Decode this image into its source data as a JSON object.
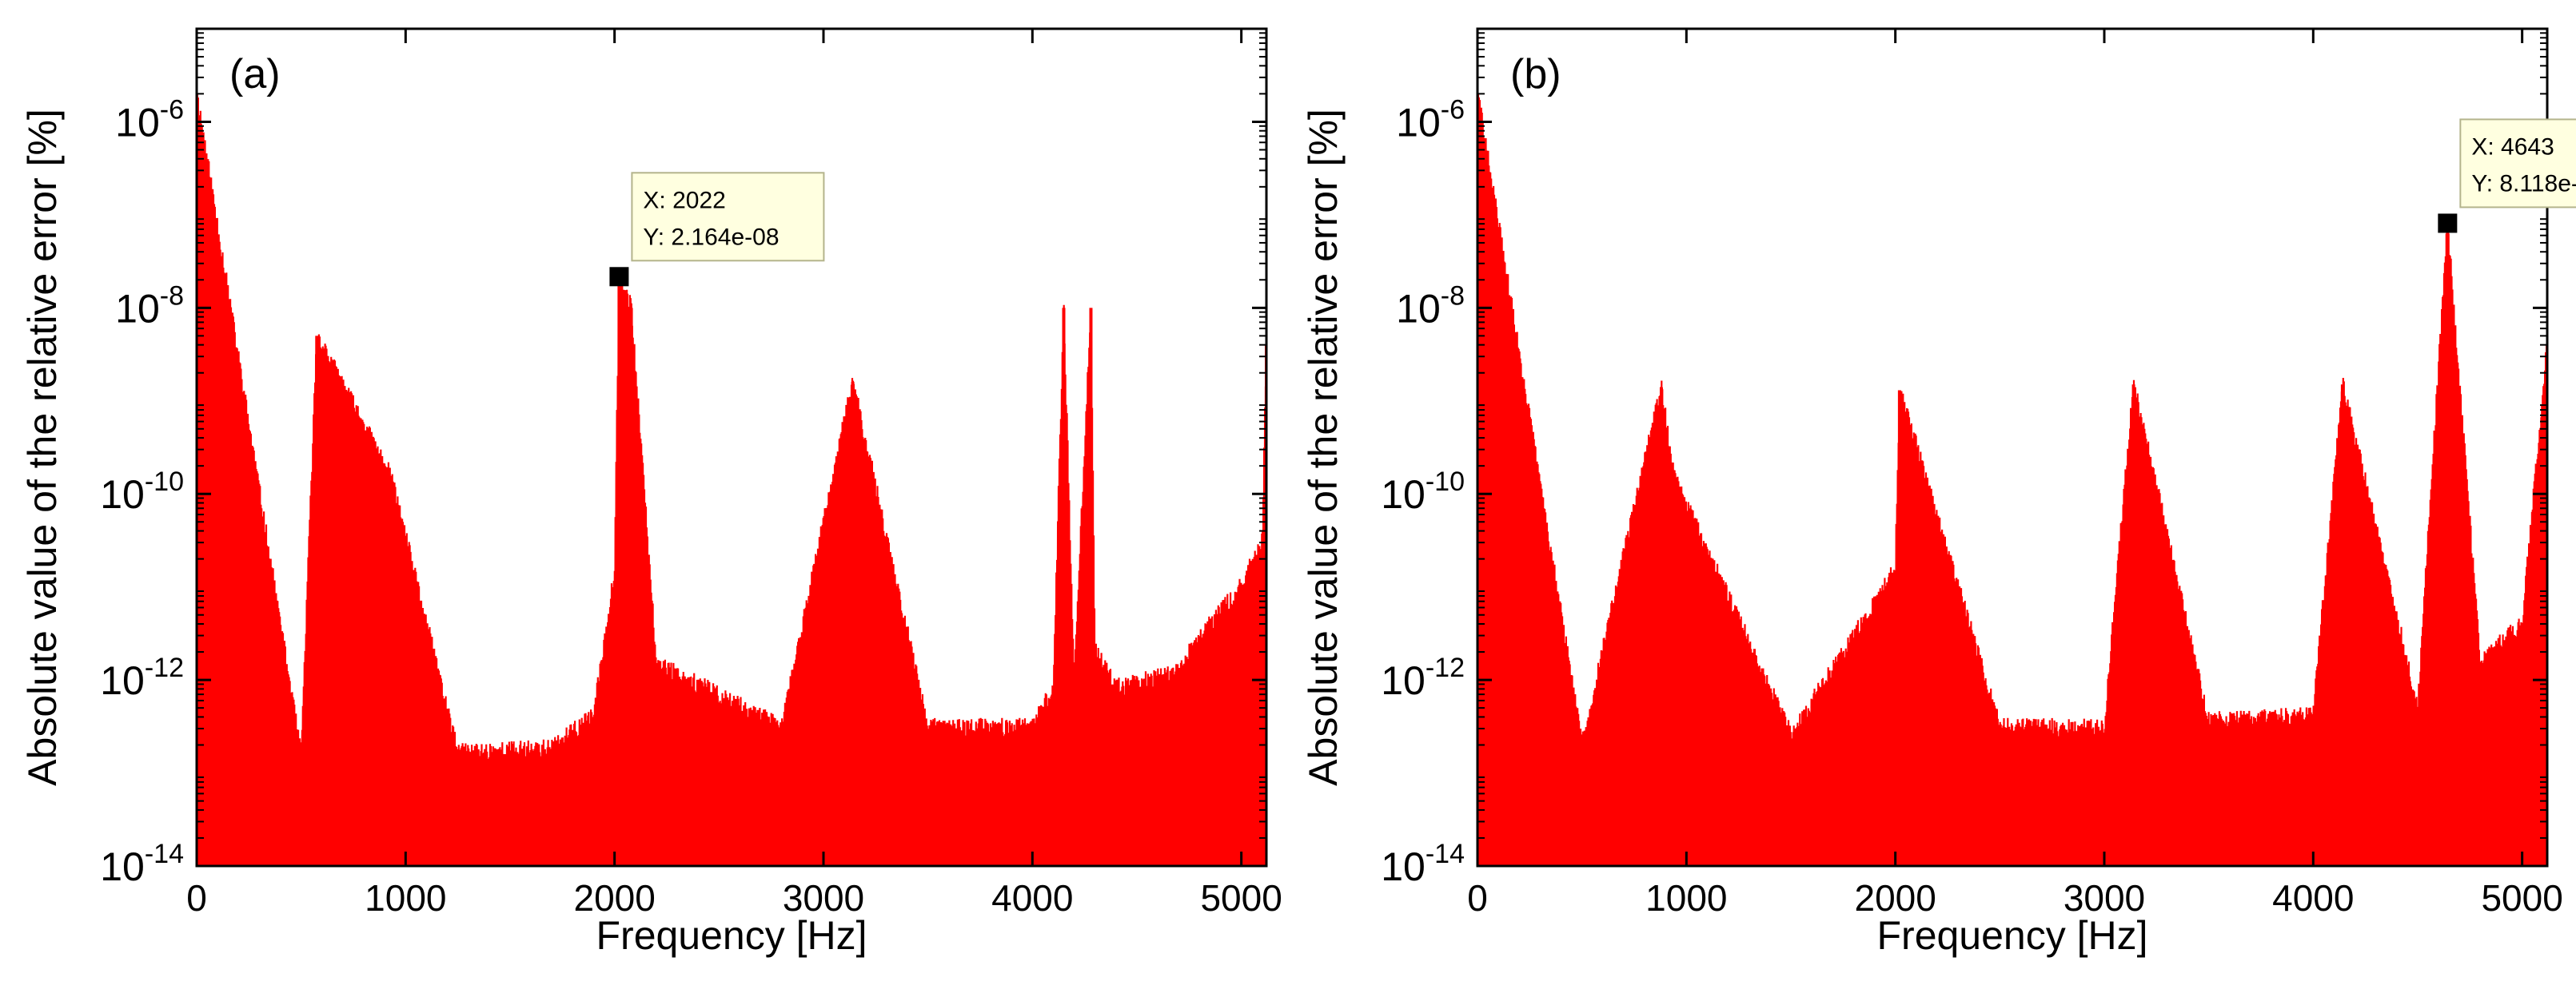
{
  "colors": {
    "trace": "#ff0000",
    "axis": "#000000",
    "background": "#ffffff",
    "datatip_fill": "#ffffe0",
    "datatip_border": "#b4b48c",
    "marker": "#000000"
  },
  "chart_data": [
    {
      "type": "line",
      "panel_label": "(a)",
      "title": "",
      "xlabel": "Frequency [Hz]",
      "ylabel": "Absolute value of the relative error [%]",
      "xscale": "linear",
      "yscale": "log",
      "xlim": [
        0,
        5120
      ],
      "ylim": [
        1e-14,
        1e-05
      ],
      "xticks": [
        0,
        1000,
        2000,
        3000,
        4000,
        5000
      ],
      "xtick_labels": [
        "0",
        "1000",
        "2000",
        "3000",
        "4000",
        "5000"
      ],
      "yticks": [
        1e-14,
        1e-12,
        1e-10,
        1e-08,
        1e-06
      ],
      "ytick_labels": [
        {
          "base": "10",
          "exp": "-14"
        },
        {
          "base": "10",
          "exp": "-12"
        },
        {
          "base": "10",
          "exp": "-10"
        },
        {
          "base": "10",
          "exp": "-8"
        },
        {
          "base": "10",
          "exp": "-6"
        }
      ],
      "series": [
        {
          "name": "relative error",
          "x": [
            0,
            500,
            575,
            930,
            1250,
            1700,
            1900,
            2000,
            2022,
            2080,
            2200,
            2800,
            3140,
            3500,
            4000,
            4100,
            4150,
            4200,
            4280,
            4300,
            4400,
            4700,
            4750,
            5000,
            5100,
            5120
          ],
          "y": [
            2e-06,
            1.5e-13,
            5e-09,
            1.5e-10,
            1.6e-13,
            1.8e-13,
            4e-13,
            1.5e-11,
            2.164e-08,
            1e-08,
            1.5e-12,
            3e-13,
            1.6e-09,
            3e-13,
            3e-13,
            8e-13,
            1e-08,
            1e-12,
            1e-08,
            2e-12,
            8e-13,
            1.2e-12,
            2e-12,
            1e-11,
            3e-11,
            4e-09
          ]
        }
      ],
      "peaks": [
        {
          "x": 0,
          "y": 2e-06
        },
        {
          "x": 575,
          "y": 5e-09
        },
        {
          "x": 930,
          "y": 1.5e-10
        },
        {
          "x": 2022,
          "y": 2.164e-08
        },
        {
          "x": 2080,
          "y": 1e-08
        },
        {
          "x": 3140,
          "y": 1.6e-09
        },
        {
          "x": 4150,
          "y": 1e-08
        },
        {
          "x": 4280,
          "y": 1e-08
        },
        {
          "x": 5120,
          "y": 4e-09
        }
      ],
      "annotation": {
        "x": 2022,
        "y": 2.164e-08,
        "line1": "X: 2022",
        "line2": "Y: 2.164e-08"
      }
    },
    {
      "type": "line",
      "panel_label": "(b)",
      "title": "",
      "xlabel": "Frequency [Hz]",
      "ylabel": "Absolute value of the relative error [%]",
      "xscale": "linear",
      "yscale": "log",
      "xlim": [
        0,
        5120
      ],
      "ylim": [
        1e-14,
        1e-05
      ],
      "xticks": [
        0,
        1000,
        2000,
        3000,
        4000,
        5000
      ],
      "xtick_labels": [
        "0",
        "1000",
        "2000",
        "3000",
        "4000",
        "5000"
      ],
      "yticks": [
        1e-14,
        1e-12,
        1e-10,
        1e-08,
        1e-06
      ],
      "ytick_labels": [
        {
          "base": "10",
          "exp": "-14"
        },
        {
          "base": "10",
          "exp": "-12"
        },
        {
          "base": "10",
          "exp": "-10"
        },
        {
          "base": "10",
          "exp": "-8"
        },
        {
          "base": "10",
          "exp": "-6"
        }
      ],
      "series": [
        {
          "name": "relative error",
          "x": [
            0,
            500,
            880,
            940,
            1500,
            2000,
            2020,
            2500,
            3000,
            3140,
            3500,
            4000,
            4140,
            4500,
            4643,
            4800,
            5000,
            5120
          ],
          "y": [
            2e-06,
            2e-13,
            1.4e-09,
            1.5e-10,
            2.5e-13,
            1.5e-11,
            1.3e-09,
            3e-13,
            3e-13,
            1.5e-09,
            3.5e-13,
            4e-13,
            1.5e-09,
            5e-13,
            8.118e-08,
            1.5e-12,
            4e-12,
            4e-09
          ]
        }
      ],
      "peaks": [
        {
          "x": 0,
          "y": 2e-06
        },
        {
          "x": 880,
          "y": 1.4e-09
        },
        {
          "x": 940,
          "y": 1.5e-10
        },
        {
          "x": 2020,
          "y": 1.3e-09
        },
        {
          "x": 3140,
          "y": 1.5e-09
        },
        {
          "x": 4140,
          "y": 1.5e-09
        },
        {
          "x": 4643,
          "y": 8.118e-08
        },
        {
          "x": 5120,
          "y": 4e-09
        }
      ],
      "annotation": {
        "x": 4643,
        "y": 8.118e-08,
        "line1": "X: 4643",
        "line2": "Y: 8.118e-08"
      }
    }
  ]
}
